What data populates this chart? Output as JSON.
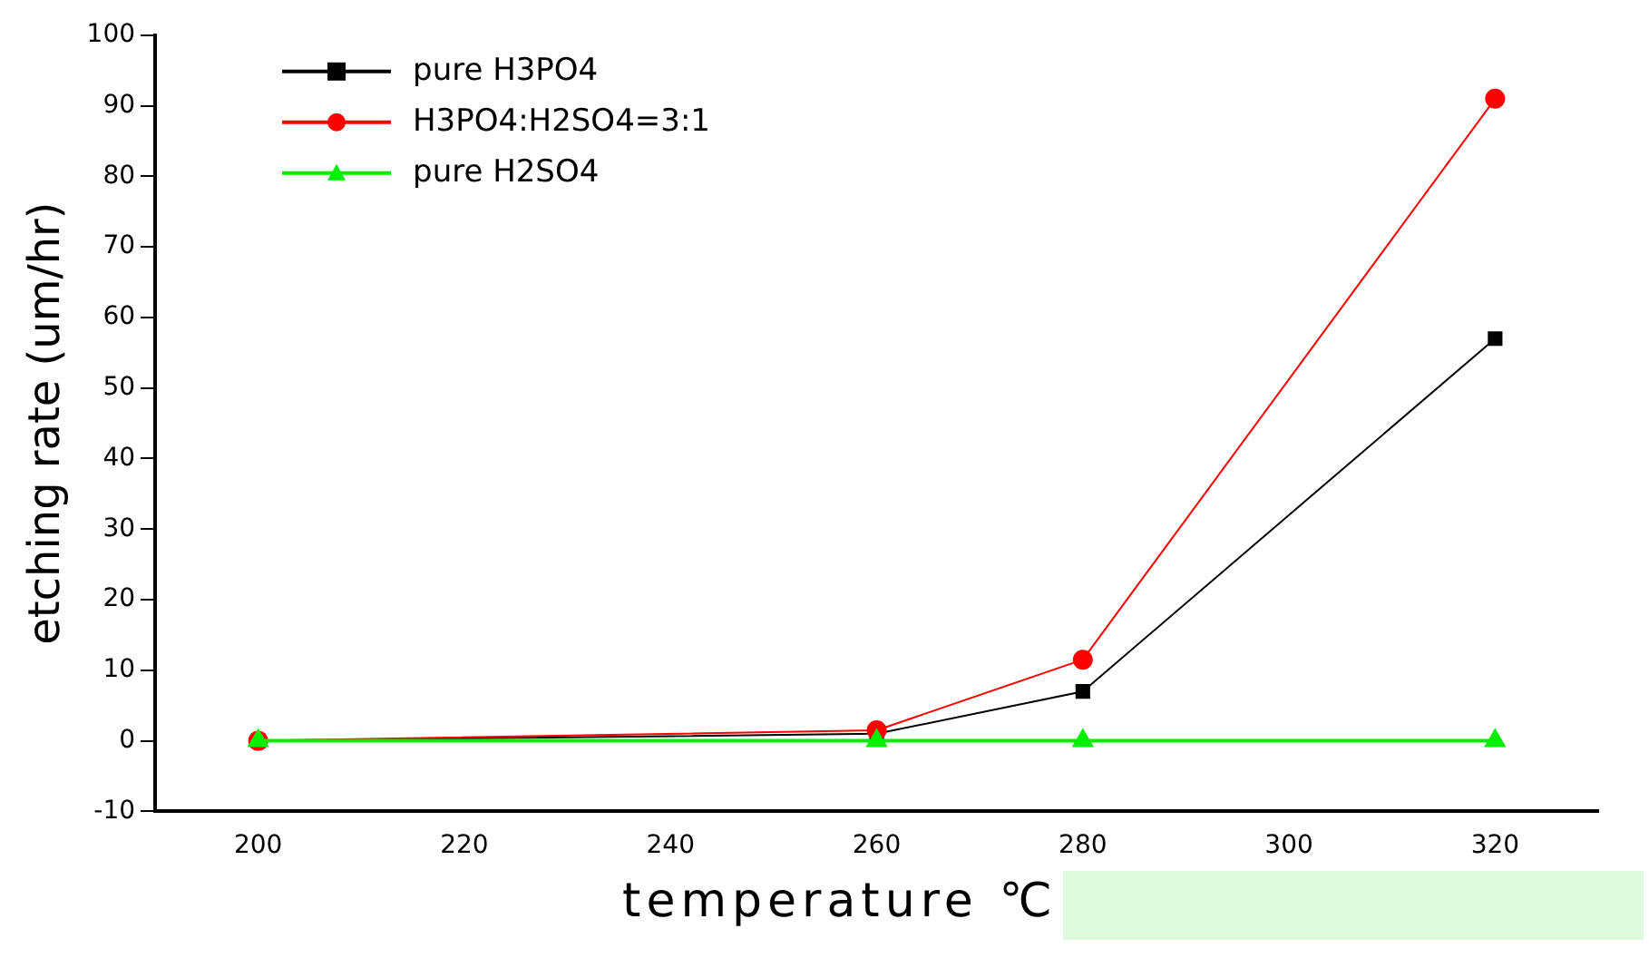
{
  "chart_data": {
    "type": "line",
    "xlabel": "temperature ℃",
    "ylabel": "etching rate (um/hr)",
    "x": [
      200,
      260,
      280,
      320
    ],
    "series": [
      {
        "name": "pure H3PO4",
        "color": "#000000",
        "values": [
          0,
          1,
          7,
          57
        ],
        "marker": "square"
      },
      {
        "name": "H3PO4:H2SO4=3:1",
        "color": "#ff0000",
        "values": [
          0,
          1.5,
          11.5,
          91
        ],
        "marker": "circle"
      },
      {
        "name": "pure H2SO4",
        "color": "#00ee00",
        "values": [
          0,
          0,
          0,
          0
        ],
        "marker": "triangle"
      }
    ],
    "xlim": [
      190,
      330
    ],
    "xticks": [
      200,
      220,
      240,
      260,
      280,
      300,
      320
    ],
    "ylim": [
      -10,
      100
    ],
    "yticks": [
      -10,
      0,
      10,
      20,
      30,
      40,
      50,
      60,
      70,
      80,
      90,
      100
    ],
    "grid": false,
    "legend": "top left"
  }
}
